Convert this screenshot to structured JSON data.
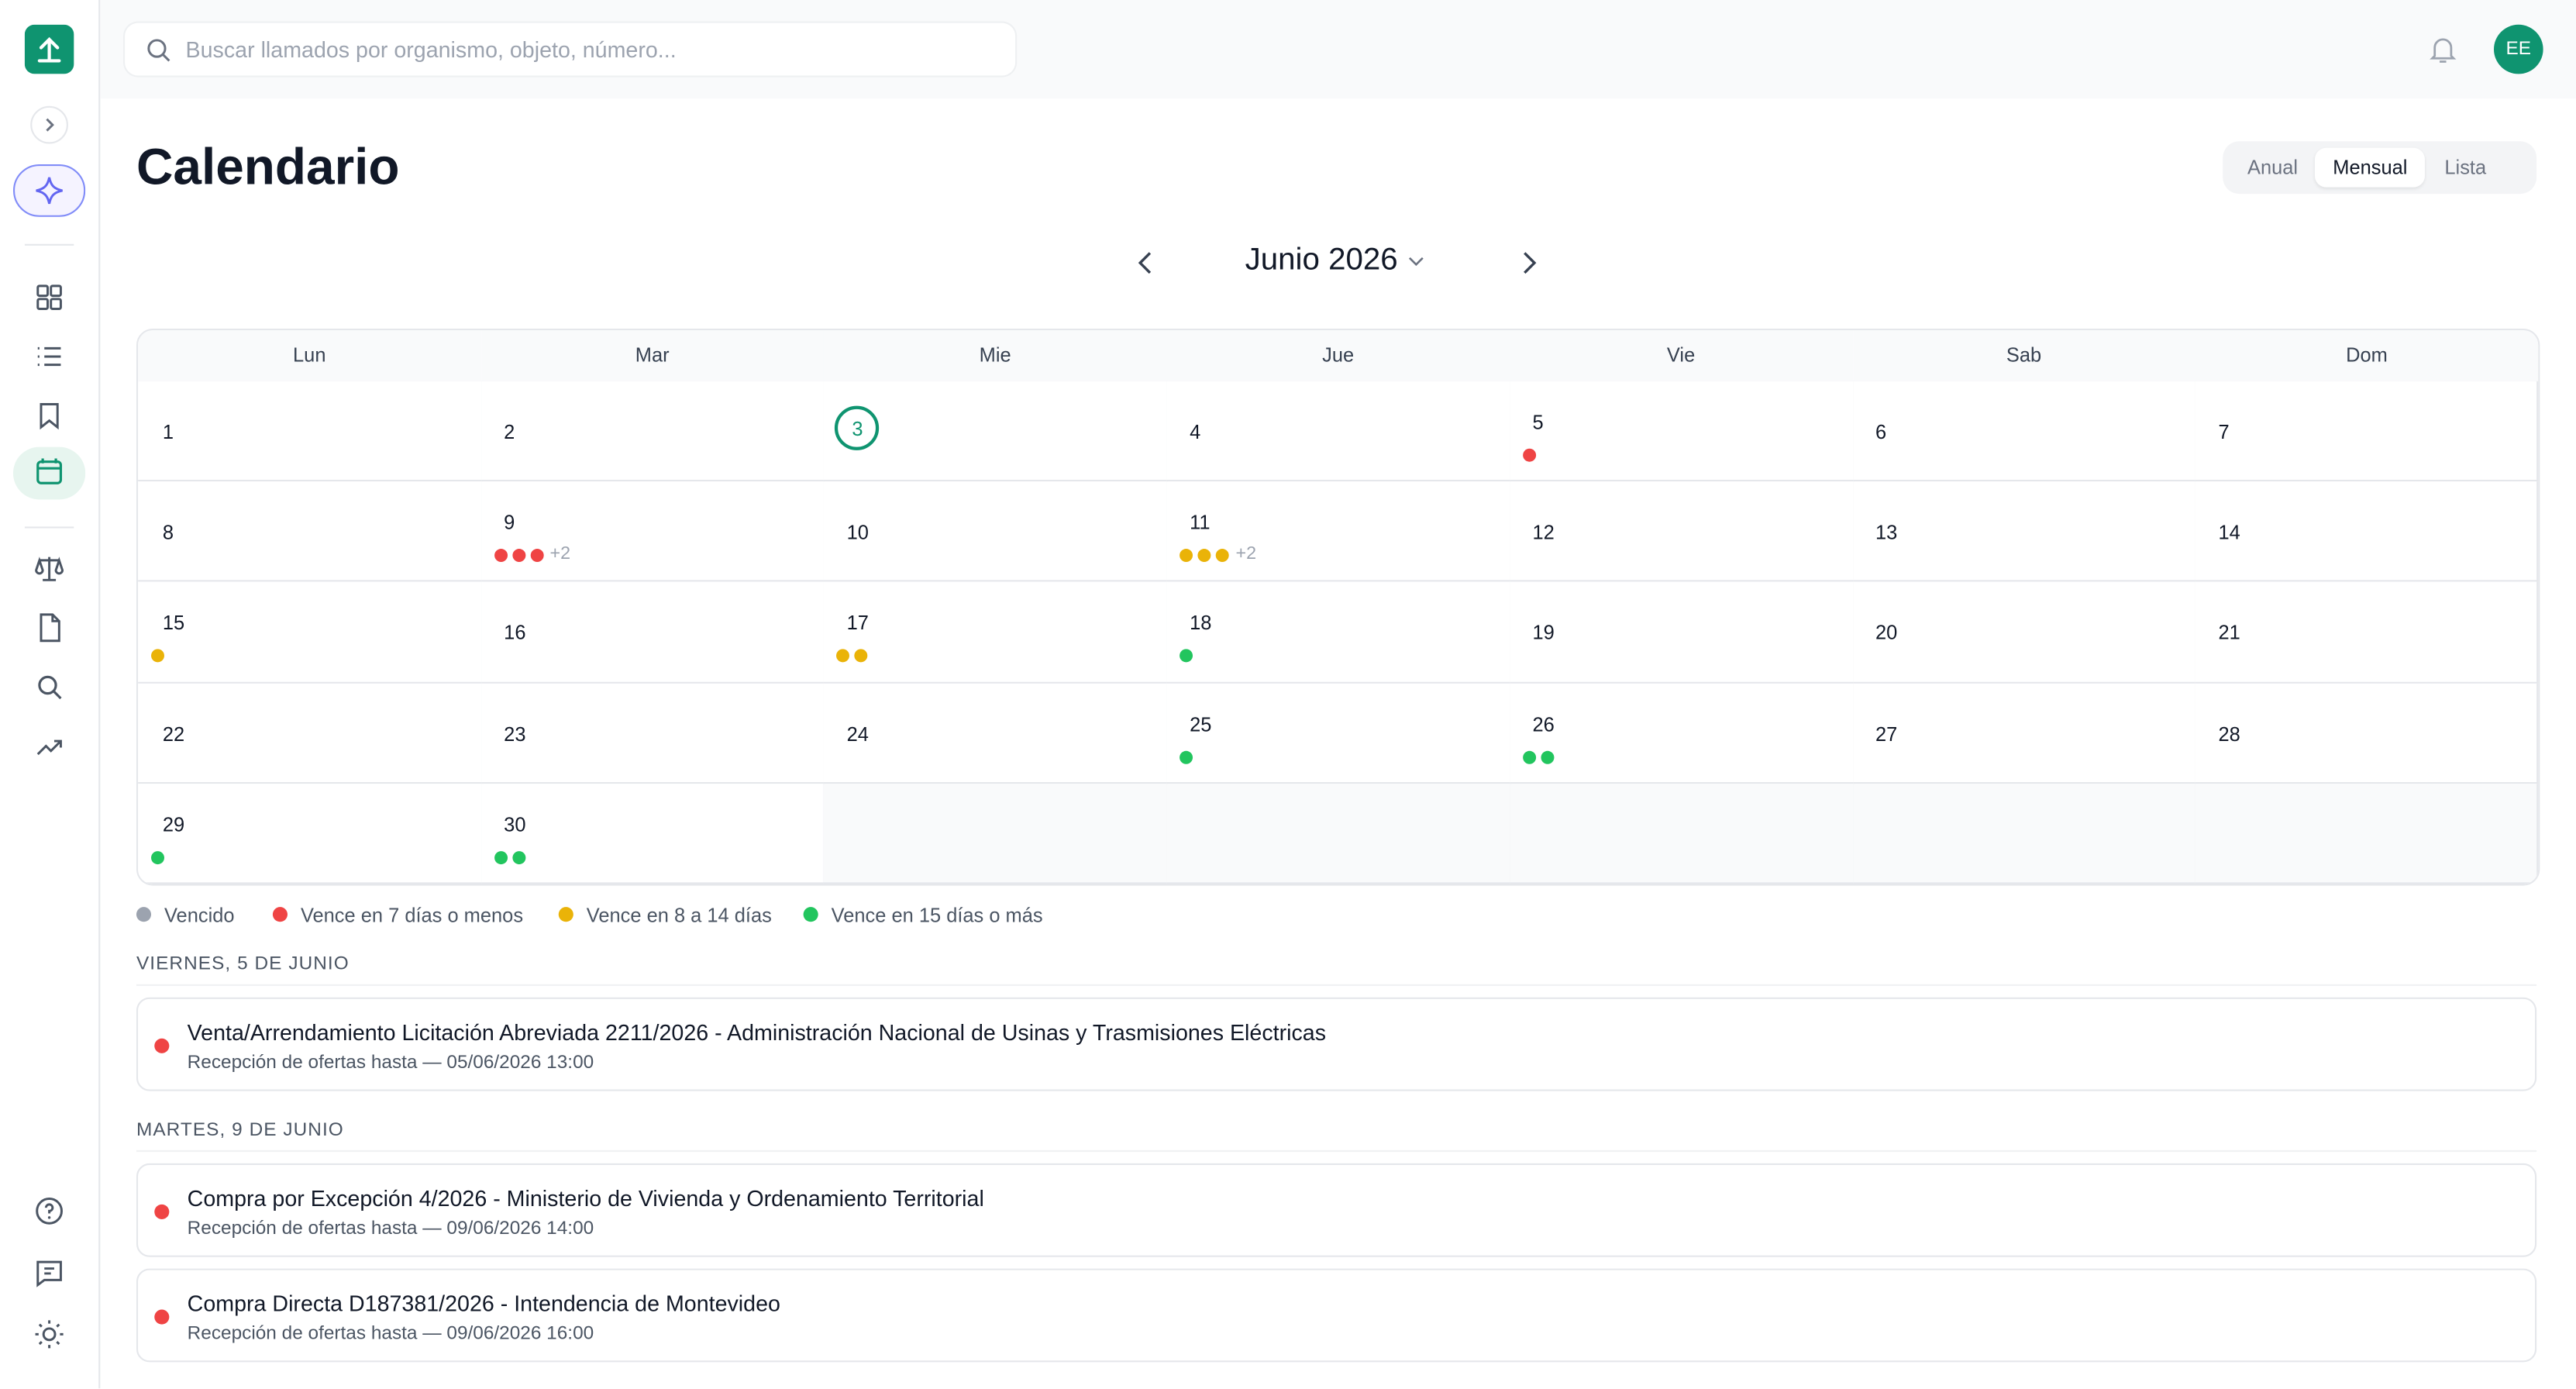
{
  "search": {
    "placeholder": "Buscar llamados por organismo, objeto, número..."
  },
  "user": {
    "initials": "EE"
  },
  "page": {
    "title": "Calendario"
  },
  "views": {
    "items": [
      "Anual",
      "Mensual",
      "Lista"
    ],
    "active": 1
  },
  "month": {
    "label": "Junio 2026"
  },
  "calendar": {
    "weekdays": [
      "Lun",
      "Mar",
      "Mie",
      "Jue",
      "Vie",
      "Sab",
      "Dom"
    ],
    "days": [
      {
        "day": 1
      },
      {
        "day": 2
      },
      {
        "day": 3,
        "today": true
      },
      {
        "day": 4
      },
      {
        "day": 5,
        "dots": [
          "#ef4444"
        ]
      },
      {
        "day": 6
      },
      {
        "day": 7
      },
      {
        "day": 8
      },
      {
        "day": 9,
        "dots": [
          "#ef4444",
          "#ef4444",
          "#ef4444"
        ],
        "more": "+2"
      },
      {
        "day": 10
      },
      {
        "day": 11,
        "dots": [
          "#eab308",
          "#eab308",
          "#eab308"
        ],
        "more": "+2"
      },
      {
        "day": 12
      },
      {
        "day": 13
      },
      {
        "day": 14
      },
      {
        "day": 15,
        "dots": [
          "#eab308"
        ]
      },
      {
        "day": 16
      },
      {
        "day": 17,
        "dots": [
          "#eab308",
          "#eab308"
        ]
      },
      {
        "day": 18,
        "dots": [
          "#22c55e"
        ]
      },
      {
        "day": 19
      },
      {
        "day": 20
      },
      {
        "day": 21
      },
      {
        "day": 22
      },
      {
        "day": 23
      },
      {
        "day": 24
      },
      {
        "day": 25,
        "dots": [
          "#22c55e"
        ]
      },
      {
        "day": 26,
        "dots": [
          "#22c55e",
          "#22c55e"
        ]
      },
      {
        "day": 27
      },
      {
        "day": 28
      },
      {
        "day": 29,
        "dots": [
          "#22c55e"
        ]
      },
      {
        "day": 30,
        "dots": [
          "#22c55e",
          "#22c55e"
        ]
      }
    ]
  },
  "legend": [
    {
      "label": "Vencido",
      "color": "#9ca3af"
    },
    {
      "label": "Vence en 7 días o menos",
      "color": "#ef4444"
    },
    {
      "label": "Vence en 8 a 14 días",
      "color": "#eab308"
    },
    {
      "label": "Vence en 15 días o más",
      "color": "#22c55e"
    }
  ],
  "sections": [
    {
      "heading": "VIERNES, 5 DE JUNIO",
      "items": [
        {
          "title": "Venta/Arrendamiento Licitación Abreviada 2211/2026 - Administración Nacional de Usinas y Trasmisiones Eléctricas",
          "subtitle": "Recepción de ofertas hasta — 05/06/2026 13:00",
          "color": "#ef4444"
        }
      ]
    },
    {
      "heading": "MARTES, 9 DE JUNIO",
      "items": [
        {
          "title": "Compra por Excepción 4/2026 - Ministerio de Vivienda y Ordenamiento Territorial",
          "subtitle": "Recepción de ofertas hasta — 09/06/2026 14:00",
          "color": "#ef4444"
        },
        {
          "title": "Compra Directa D187381/2026 - Intendencia de Montevideo",
          "subtitle": "Recepción de ofertas hasta — 09/06/2026 16:00",
          "color": "#ef4444"
        }
      ]
    }
  ]
}
